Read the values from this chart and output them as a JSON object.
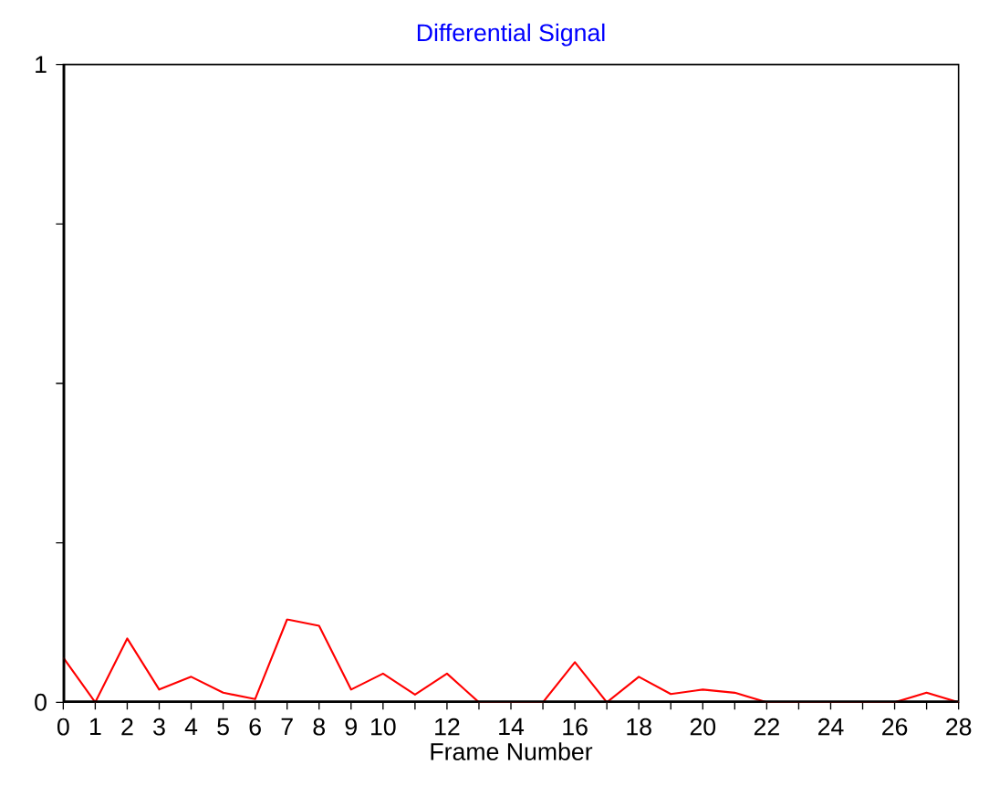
{
  "chart_data": {
    "type": "line",
    "title": "Differential Signal",
    "xlabel": "Frame Number",
    "x": [
      0,
      1,
      2,
      3,
      4,
      5,
      6,
      7,
      8,
      9,
      10,
      11,
      12,
      13,
      14,
      15,
      16,
      17,
      18,
      19,
      20,
      21,
      22,
      23,
      24,
      25,
      26,
      27,
      28
    ],
    "series": [
      {
        "color": "#ff0000",
        "values": [
          0.07,
          0,
          0.1,
          0.02,
          0.04,
          0.015,
          0.005,
          0.13,
          0.12,
          0.02,
          0.045,
          0.012,
          0.045,
          0,
          0,
          0,
          0.063,
          0,
          0.04,
          0.013,
          0.02,
          0.015,
          0,
          0,
          0,
          0,
          0,
          0.015,
          0
        ]
      }
    ],
    "xlim": [
      0,
      28
    ],
    "xticks": [
      0,
      1,
      2,
      3,
      4,
      5,
      6,
      7,
      8,
      9,
      10,
      {
        "value": 11,
        "label": null
      },
      12,
      {
        "value": 13,
        "label": null
      },
      14,
      {
        "value": 15,
        "label": null
      },
      16,
      {
        "value": 17,
        "label": null
      },
      18,
      {
        "value": 19,
        "label": null
      },
      20,
      {
        "value": 21,
        "label": null
      },
      22,
      {
        "value": 23,
        "label": null
      },
      24,
      {
        "value": 25,
        "label": null
      },
      26,
      {
        "value": 27,
        "label": null
      },
      28
    ],
    "ylim": [
      0,
      1
    ],
    "yticks": [
      0,
      {
        "value": 0.25,
        "label": null
      },
      {
        "value": 0.5,
        "label": null
      },
      {
        "value": 0.75,
        "label": null
      },
      1
    ],
    "grid": false,
    "marker": "none",
    "line_style": "solid"
  }
}
